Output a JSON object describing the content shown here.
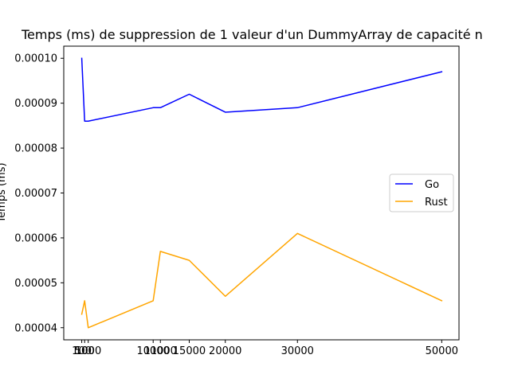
{
  "chart_data": {
    "type": "line",
    "title": "Temps (ms) de suppression de 1 valeur d'un DummyArray de capacité n",
    "xlabel": "",
    "ylabel": "Temps (ms)",
    "x": [
      100,
      500,
      1000,
      10000,
      11000,
      15000,
      20000,
      30000,
      50000
    ],
    "xticks": [
      100,
      500,
      1000,
      10000,
      11000,
      15000,
      20000,
      30000,
      50000
    ],
    "yticks": [
      4e-05,
      5e-05,
      6e-05,
      7e-05,
      8e-05,
      9e-05,
      0.0001
    ],
    "ytick_labels": [
      "0.00004",
      "0.00005",
      "0.00006",
      "0.00007",
      "0.00008",
      "0.00009",
      "0.00010"
    ],
    "xlim": [
      -2395,
      52395
    ],
    "ylim": [
      3.73e-05,
      0.0001027
    ],
    "grid": false,
    "legend_position": "center-right",
    "series": [
      {
        "name": "Go",
        "color": "#0000ff",
        "values": [
          0.0001,
          8.6e-05,
          8.6e-05,
          8.9e-05,
          8.9e-05,
          9.2e-05,
          8.8e-05,
          8.9e-05,
          9.7e-05
        ]
      },
      {
        "name": "Rust",
        "color": "#ffa500",
        "values": [
          4.3e-05,
          4.6e-05,
          4e-05,
          4.6e-05,
          5.7e-05,
          5.5e-05,
          4.7e-05,
          6.1e-05,
          4.6e-05
        ]
      }
    ]
  }
}
